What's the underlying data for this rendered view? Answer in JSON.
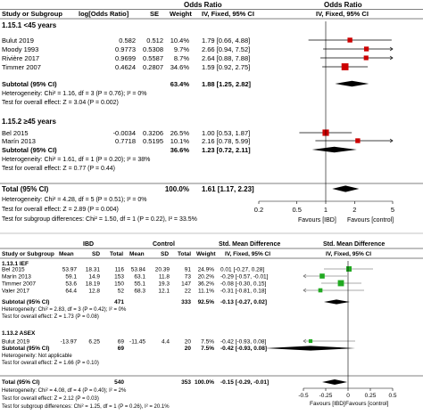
{
  "panelA": {
    "group_header": "Odds Ratio",
    "header_study": "Study or Subgroup",
    "header_logor": "log[Odds Ratio]",
    "header_se": "SE",
    "header_weight": "Weight",
    "header_ci": "IV, Fixed, 95% CI",
    "sub1_title": "1.15.1 <45 years",
    "sub1_subtotal_label": "Subtotal (95% CI)",
    "sub1_subtotal_weight": "63.4%",
    "sub1_subtotal_ci": "1.88 [1.25, 2.82]",
    "sub1_het": "Heterogeneity: Chi² = 1.16, df = 3 (P = 0.76); I² = 0%",
    "sub1_test": "Test for overall effect: Z = 3.04 (P = 0.002)",
    "sub2_title": "1.15.2 ≥45 years",
    "sub2_subtotal_label": "Subtotal (95% CI)",
    "sub2_subtotal_weight": "36.6%",
    "sub2_subtotal_ci": "1.23 [0.72, 2.11]",
    "sub2_het": "Heterogeneity: Chi² = 1.61, df = 1 (P = 0.20); I² = 38%",
    "sub2_test": "Test for overall effect: Z = 0.77 (P = 0.44)",
    "total_label": "Total (95% CI)",
    "total_weight": "100.0%",
    "total_ci": "1.61 [1.17, 2.23]",
    "total_het": "Heterogeneity: Chi² = 4.28, df = 5 (P = 0.51); I² = 0%",
    "total_test": "Test for overall effect: Z = 2.89 (P = 0.004)",
    "total_subgroup": "Test for subgroup differences: Chi² = 1.50, df = 1 (P = 0.22), I² = 33.5%",
    "fav_left": "Favours [IBD]",
    "fav_right": "Favours [control]"
  },
  "panelB": {
    "group_header": "Std. Mean Difference",
    "header_study": "Study or Subgroup",
    "header_ibd": "IBD",
    "header_control": "Control",
    "header_mean": "Mean",
    "header_sd": "SD",
    "header_total": "Total",
    "header_weight": "Weight",
    "header_ci": "IV, Fixed, 95% CI",
    "sub1_title": "1.13.1 IEF",
    "sub1_subtotal_label": "Subtotal (95% CI)",
    "sub1_subtotal_t1": "471",
    "sub1_subtotal_t2": "333",
    "sub1_subtotal_weight": "92.5%",
    "sub1_subtotal_ci": "-0.13 [-0.27, 0.02]",
    "sub1_het": "Heterogeneity: Chi² = 2.83, df = 3 (P = 0.42); I² = 0%",
    "sub1_test": "Test for overall effect: Z = 1.73 (P = 0.08)",
    "sub2_title": "1.13.2 ASEX",
    "sub2_subtotal_label": "Subtotal (95% CI)",
    "sub2_subtotal_t1": "69",
    "sub2_subtotal_t2": "20",
    "sub2_subtotal_weight": "7.5%",
    "sub2_subtotal_ci": "-0.42 [-0.93, 0.08]",
    "sub2_het": "Heterogeneity: Not applicable",
    "sub2_test": "Test for overall effect: Z = 1.66 (P = 0.10)",
    "total_label": "Total (95% CI)",
    "total_t1": "540",
    "total_t2": "353",
    "total_weight": "100.0%",
    "total_ci": "-0.15 [-0.29, -0.01]",
    "total_het": "Heterogeneity: Chi² = 4.08, df = 4 (P = 0.40); I² = 2%",
    "total_test": "Test for overall effect: Z = 2.12 (P = 0.03)",
    "total_subgroup": "Test for subgroup differences: Chi² = 1.25, df = 1 (P = 0.26), I² = 20.1%",
    "fav_left": "Favours [IBD]",
    "fav_right": "Favours [control]"
  },
  "chart_data": [
    {
      "type": "forest",
      "scale": "log",
      "xlim": [
        0.2,
        5
      ],
      "xticks": [
        "0.2",
        "0.5",
        "1",
        "2",
        "5"
      ],
      "reference_line": 1,
      "marker_color": "#cc0000",
      "studies": [
        {
          "subgroup": "1.15.1 <45 years",
          "name": "Bulut 2019",
          "logor": "0.582",
          "se": "0.512",
          "weight": "10.4%",
          "ci_text": "1.79 [0.66, 4.88]",
          "est": 1.79,
          "lo": 0.66,
          "hi": 4.88
        },
        {
          "subgroup": "1.15.1 <45 years",
          "name": "Moody 1993",
          "logor": "0.9773",
          "se": "0.5308",
          "weight": "9.7%",
          "ci_text": "2.66 [0.94, 7.52]",
          "est": 2.66,
          "lo": 0.94,
          "hi": 7.52
        },
        {
          "subgroup": "1.15.1 <45 years",
          "name": "Rivière 2017",
          "logor": "0.9699",
          "se": "0.5587",
          "weight": "8.7%",
          "ci_text": "2.64 [0.88, 7.88]",
          "est": 2.64,
          "lo": 0.88,
          "hi": 7.88
        },
        {
          "subgroup": "1.15.1 <45 years",
          "name": "Timmer 2007",
          "logor": "0.4624",
          "se": "0.2807",
          "weight": "34.6%",
          "ci_text": "1.59 [0.92, 2.75]",
          "est": 1.59,
          "lo": 0.92,
          "hi": 2.75
        },
        {
          "subgroup": "1.15.2 ≥45 years",
          "name": "Bel 2015",
          "logor": "-0.0034",
          "se": "0.3206",
          "weight": "26.5%",
          "ci_text": "1.00 [0.53, 1.87]",
          "est": 1.0,
          "lo": 0.53,
          "hi": 1.87
        },
        {
          "subgroup": "1.15.2 ≥45 years",
          "name": "Marín 2013",
          "logor": "0.7718",
          "se": "0.5195",
          "weight": "10.1%",
          "ci_text": "2.16 [0.78, 5.99]",
          "est": 2.16,
          "lo": 0.78,
          "hi": 5.99
        }
      ],
      "subtotals": [
        {
          "name": "Subtotal 1.15.1",
          "est": 1.88,
          "lo": 1.25,
          "hi": 2.82
        },
        {
          "name": "Subtotal 1.15.2",
          "est": 1.23,
          "lo": 0.72,
          "hi": 2.11
        }
      ],
      "overall": {
        "est": 1.61,
        "lo": 1.17,
        "hi": 2.23
      }
    },
    {
      "type": "forest",
      "scale": "linear",
      "xlim": [
        -0.5,
        0.5
      ],
      "xticks": [
        "-0.5",
        "-0.25",
        "0",
        "0.25",
        "0.5"
      ],
      "reference_line": 0,
      "marker_color": "#22aa22",
      "studies": [
        {
          "subgroup": "1.13.1 IEF",
          "name": "Bel 2015",
          "m1": "53.97",
          "sd1": "18.31",
          "n1": "116",
          "m2": "53.84",
          "sd2": "20.39",
          "n2": "91",
          "weight": "24.9%",
          "ci_text": "0.01 [-0.27, 0.28]",
          "est": 0.01,
          "lo": -0.27,
          "hi": 0.28
        },
        {
          "subgroup": "1.13.1 IEF",
          "name": "Marín 2013",
          "m1": "59.1",
          "sd1": "14.9",
          "n1": "153",
          "m2": "63.1",
          "sd2": "11.8",
          "n2": "73",
          "weight": "20.2%",
          "ci_text": "-0.29 [-0.57, -0.01]",
          "est": -0.29,
          "lo": -0.57,
          "hi": -0.01
        },
        {
          "subgroup": "1.13.1 IEF",
          "name": "Timmer 2007",
          "m1": "53.6",
          "sd1": "18.19",
          "n1": "150",
          "m2": "55.1",
          "sd2": "19.3",
          "n2": "147",
          "weight": "36.2%",
          "ci_text": "-0.08 [-0.30, 0.15]",
          "est": -0.08,
          "lo": -0.3,
          "hi": 0.15
        },
        {
          "subgroup": "1.13.1 IEF",
          "name": "Valer 2017",
          "m1": "64.4",
          "sd1": "12.8",
          "n1": "52",
          "m2": "68.3",
          "sd2": "12.1",
          "n2": "22",
          "weight": "11.1%",
          "ci_text": "-0.31 [-0.81, 0.18]",
          "est": -0.31,
          "lo": -0.81,
          "hi": 0.18
        },
        {
          "subgroup": "1.13.2 ASEX",
          "name": "Bulut 2019",
          "m1": "-13.97",
          "sd1": "6.25",
          "n1": "69",
          "m2": "-11.45",
          "sd2": "4.4",
          "n2": "20",
          "weight": "7.5%",
          "ci_text": "-0.42 [-0.93, 0.08]",
          "est": -0.42,
          "lo": -0.93,
          "hi": 0.08
        }
      ],
      "subtotals": [
        {
          "name": "Subtotal 1.13.1",
          "est": -0.13,
          "lo": -0.27,
          "hi": 0.02
        },
        {
          "name": "Subtotal 1.13.2",
          "est": -0.42,
          "lo": -0.93,
          "hi": 0.08
        }
      ],
      "overall": {
        "est": -0.15,
        "lo": -0.29,
        "hi": -0.01
      }
    }
  ]
}
